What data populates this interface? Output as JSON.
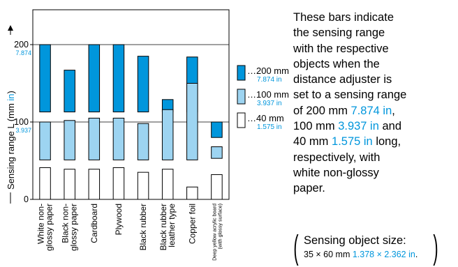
{
  "chart_data": {
    "type": "bar",
    "ylabel": "Sensing range L",
    "ylabel_unit_mm": "(mm",
    "ylabel_unit_in": "in",
    "ylabel_close": ")",
    "yticks": [
      {
        "value": 0,
        "label": "0",
        "label_in": ""
      },
      {
        "value": 100,
        "label": "100",
        "label_in": "3.937"
      },
      {
        "value": 200,
        "label": "200",
        "label_in": "7.874"
      }
    ],
    "ylim": [
      0,
      260
    ],
    "grid": "horizontal at 100 and 200",
    "categories": [
      [
        "White non-",
        "glossy paper"
      ],
      [
        "Black non-",
        "glossy paper"
      ],
      [
        "Cardboard"
      ],
      [
        "Plywood"
      ],
      [
        "Black rubber"
      ],
      [
        "Black rubber",
        "leather type"
      ],
      [
        "Copper foil"
      ],
      [
        "Deep yellow acrylic board",
        "(with glossy surface)"
      ]
    ],
    "series": [
      {
        "name": "…200 mm",
        "name_in": "7.874 in",
        "color": "#0096dc",
        "ranges": [
          [
            113,
            200
          ],
          [
            113,
            167
          ],
          [
            113,
            200
          ],
          [
            113,
            200
          ],
          [
            113,
            185
          ],
          [
            113,
            129
          ],
          [
            113,
            184
          ],
          [
            80,
            100
          ]
        ]
      },
      {
        "name": "…100 mm",
        "name_in": "3.937 in",
        "color": "#9dd4f1",
        "ranges": [
          [
            51,
            100
          ],
          [
            51,
            102
          ],
          [
            51,
            105
          ],
          [
            51,
            105
          ],
          [
            51,
            98
          ],
          [
            51,
            116
          ],
          [
            51,
            150
          ],
          [
            53,
            68
          ]
        ]
      },
      {
        "name": "…40 mm",
        "name_in": "1.575 in",
        "color": "#ffffff",
        "ranges": [
          [
            0,
            41
          ],
          [
            0,
            39
          ],
          [
            0,
            39
          ],
          [
            0,
            41
          ],
          [
            0,
            35
          ],
          [
            0,
            39
          ],
          [
            0,
            16
          ],
          [
            0,
            32
          ]
        ]
      }
    ]
  },
  "description": [
    [
      {
        "t": "These bars indicate"
      }
    ],
    [
      {
        "t": "the sensing range"
      }
    ],
    [
      {
        "t": "with the respective"
      }
    ],
    [
      {
        "t": "objects when the"
      }
    ],
    [
      {
        "t": "distance adjuster is"
      }
    ],
    [
      {
        "t": "set to a sensing range"
      }
    ],
    [
      {
        "t": "of 200 mm "
      },
      {
        "t": "7.874 in",
        "blue": true
      },
      {
        "t": ","
      }
    ],
    [
      {
        "t": "100 mm "
      },
      {
        "t": "3.937 in",
        "blue": true
      },
      {
        "t": " and"
      }
    ],
    [
      {
        "t": "40 mm "
      },
      {
        "t": "1.575 in",
        "blue": true
      },
      {
        "t": " long,"
      }
    ],
    [
      {
        "t": "respectively, with"
      }
    ],
    [
      {
        "t": "white non-glossy"
      }
    ],
    [
      {
        "t": "paper."
      }
    ]
  ],
  "note": {
    "line1": "Sensing object size:",
    "line2_mm": "35 × 60 mm ",
    "line2_in": "1.378 × 2.362 in",
    "line2_end": "."
  },
  "colors": {
    "dark_blue": "#0096dc",
    "light_blue": "#9dd4f1",
    "unit_blue": "#0096dc"
  }
}
